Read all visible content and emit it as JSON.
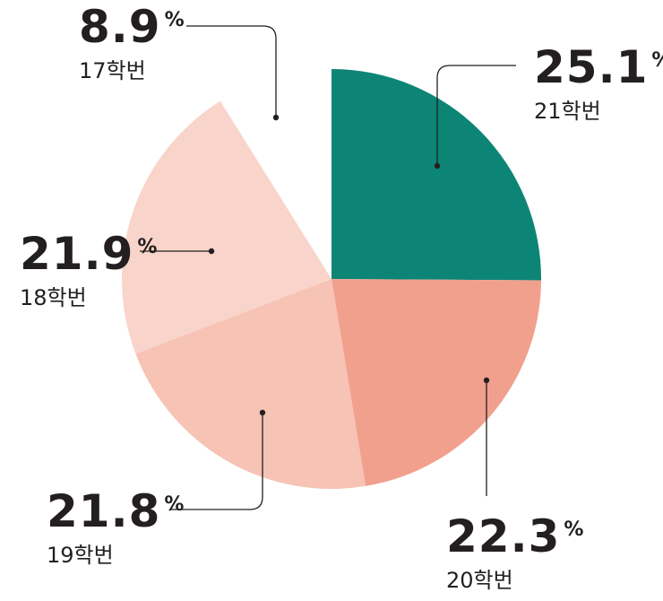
{
  "chart_data": {
    "type": "pie",
    "title": "",
    "start": "12 o'clock",
    "direction": "clockwise",
    "slices": [
      {
        "label": "21학번",
        "value": 25.1,
        "display": "25.1",
        "unit": "%",
        "color": "#0d8576",
        "exploded": false
      },
      {
        "label": "20학번",
        "value": 22.3,
        "display": "22.3",
        "unit": "%",
        "color": "#f2a08e",
        "exploded": false
      },
      {
        "label": "19학번",
        "value": 21.8,
        "display": "21.8",
        "unit": "%",
        "color": "#f6c3b4",
        "exploded": false
      },
      {
        "label": "18학번",
        "value": 21.9,
        "display": "21.9",
        "unit": "%",
        "color": "#f9d4ca",
        "exploded": false
      },
      {
        "label": "17학번",
        "value": 8.9,
        "display": "8.9",
        "unit": "%",
        "color": "#ffffff",
        "exploded": true
      }
    ]
  }
}
